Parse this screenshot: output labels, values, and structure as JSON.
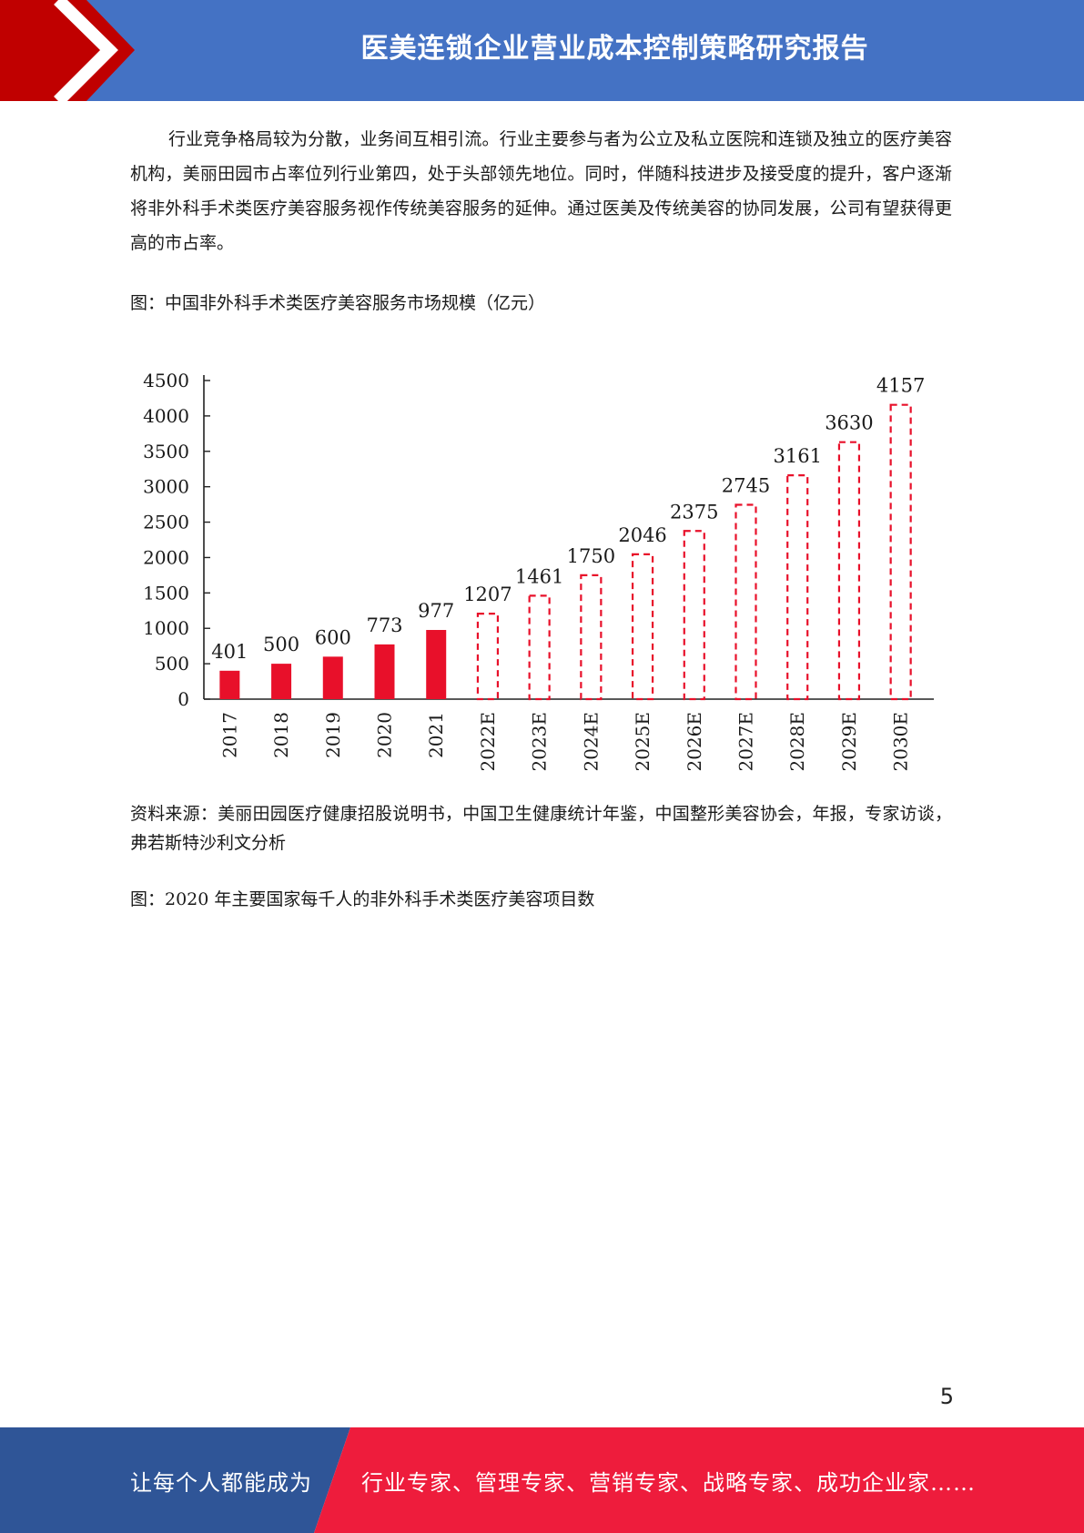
{
  "header": {
    "title": "医美连锁企业营业成本控制策略研究报告",
    "color_blue": "#4472c4",
    "color_red": "#c00000"
  },
  "body": {
    "paragraph": "行业竞争格局较为分散，业务间互相引流。行业主要参与者为公立及私立医院和连锁及独立的医疗美容机构，美丽田园市占率位列行业第四，处于头部领先地位。同时，伴随科技进步及接受度的提升，客户逐渐将非外科手术类医疗美容服务视作传统美容服务的延伸。通过医美及传统美容的协同发展，公司有望获得更高的市占率。",
    "figure1_caption": "图：中国非外科手术类医疗美容服务市场规模（亿元）",
    "source": "资料来源：美丽田园医疗健康招股说明书，中国卫生健康统计年鉴，中国整形美容协会，年报，专家访谈，弗若斯特沙利文分析",
    "figure2_caption": "图：2020 年主要国家每千人的非外科手术类医疗美容项目数"
  },
  "chart_data": {
    "type": "bar",
    "categories": [
      "2017",
      "2018",
      "2019",
      "2020",
      "2021",
      "2022E",
      "2023E",
      "2024E",
      "2025E",
      "2026E",
      "2027E",
      "2028E",
      "2029E",
      "2030E"
    ],
    "values": [
      401,
      500,
      600,
      773,
      977,
      1207,
      1461,
      1750,
      2046,
      2375,
      2745,
      3161,
      3630,
      4157
    ],
    "data_labels": [
      "401",
      "500",
      "600",
      "773",
      "977",
      "1207",
      "1461",
      "1750",
      "2046",
      "2375",
      "2745",
      "3161",
      "3630",
      "4157"
    ],
    "estimated": [
      false,
      false,
      false,
      false,
      false,
      true,
      true,
      true,
      true,
      true,
      true,
      true,
      true,
      true
    ],
    "yticks": [
      "0",
      "500",
      "1000",
      "1500",
      "2000",
      "2500",
      "3000",
      "3500",
      "4000",
      "4500"
    ],
    "ylim": [
      0,
      4500
    ],
    "title": "",
    "xlabel": "",
    "ylabel": "",
    "grid": false,
    "bar_color": "#e8102a",
    "estimate_style": "dashed-outline"
  },
  "page_number": "5",
  "footer": {
    "left_text": "让每个人都能成为",
    "right_text": "行业专家、管理专家、营销专家、战略专家、成功企业家……",
    "color_blue": "#2f5597",
    "color_red": "#ee1c3c"
  }
}
